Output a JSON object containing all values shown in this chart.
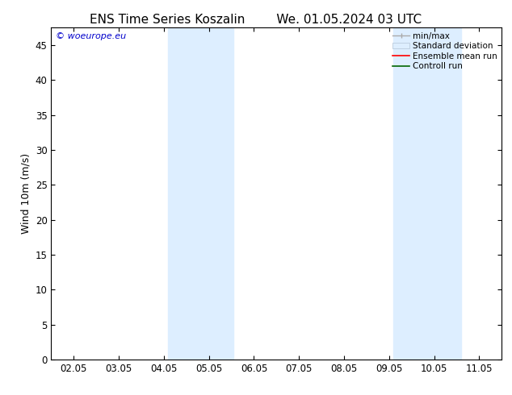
{
  "title_left": "ENS Time Series Koszalin",
  "title_right": "We. 01.05.2024 03 UTC",
  "ylabel": "Wind 10m (m/s)",
  "yticks": [
    0,
    5,
    10,
    15,
    20,
    25,
    30,
    35,
    40,
    45
  ],
  "ymin": 0,
  "ymax": 47.5,
  "xtick_labels": [
    "02.05",
    "03.05",
    "04.05",
    "05.05",
    "06.05",
    "07.05",
    "08.05",
    "09.05",
    "10.05",
    "11.05"
  ],
  "xmin": -0.5,
  "xmax": 9.5,
  "shaded_bands": [
    {
      "xmin": 2.3,
      "xmax": 3.1,
      "color": "#ddeeff"
    },
    {
      "xmin": 3.1,
      "xmax": 3.6,
      "color": "#ddeeff"
    },
    {
      "xmin": 7.3,
      "xmax": 8.1,
      "color": "#ddeeff"
    },
    {
      "xmin": 8.1,
      "xmax": 8.6,
      "color": "#ddeeff"
    }
  ],
  "background_color": "#ffffff",
  "watermark_text": "© woeurope.eu",
  "watermark_color": "#0000cc",
  "legend_labels": [
    "min/max",
    "Standard deviation",
    "Ensemble mean run",
    "Controll run"
  ],
  "legend_colors": [
    "#aaaaaa",
    "#ddeeff",
    "#ff0000",
    "#006600"
  ],
  "title_fontsize": 11,
  "axis_fontsize": 9,
  "tick_fontsize": 8.5
}
